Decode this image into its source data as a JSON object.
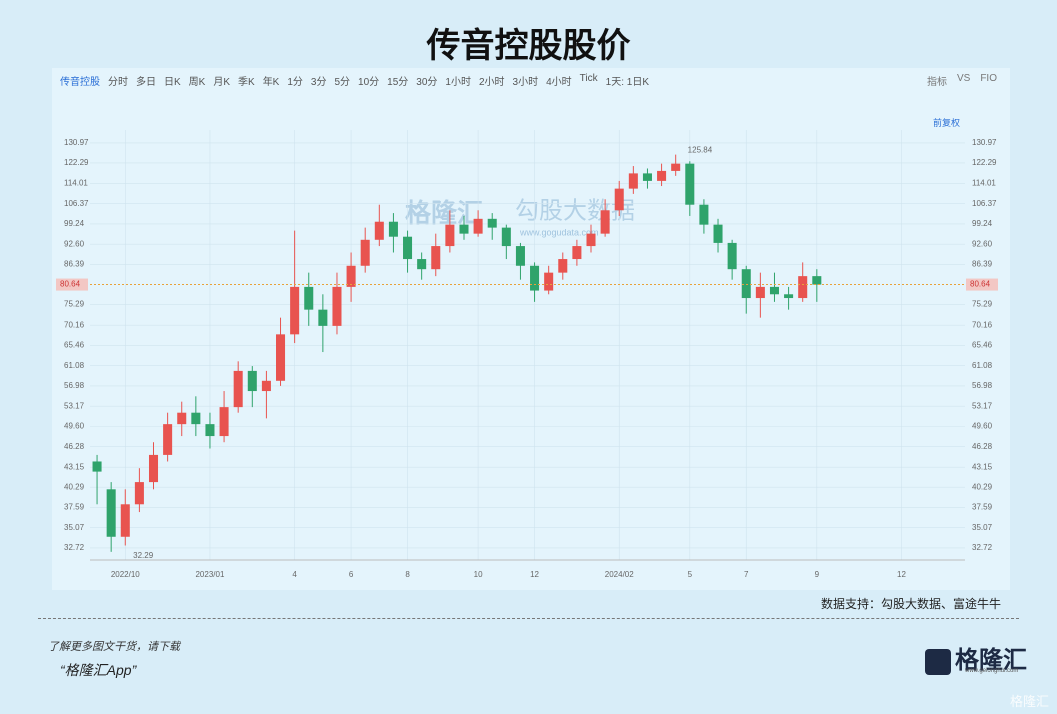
{
  "header": {
    "title": "传音控股股价"
  },
  "toolbar": {
    "stock": "传音控股",
    "periods": [
      "分时",
      "多日",
      "日K",
      "周K",
      "月K",
      "季K",
      "年K",
      "1分",
      "3分",
      "5分",
      "10分",
      "15分",
      "30分",
      "1小时",
      "2小时",
      "3小时",
      "4小时",
      "Tick",
      "1天: 1日K"
    ],
    "tools": [
      "指标",
      "VS",
      "FIO"
    ],
    "adjust": "前复权"
  },
  "chart_data": {
    "type": "candlestick",
    "categories": [
      null,
      null,
      "2022/10",
      null,
      null,
      null,
      null,
      null,
      "2023/01",
      null,
      null,
      null,
      null,
      null,
      "4",
      null,
      null,
      null,
      "6",
      null,
      null,
      null,
      "8",
      null,
      null,
      null,
      null,
      "10",
      null,
      null,
      null,
      "12",
      null,
      null,
      null,
      null,
      null,
      "2024/02",
      null,
      null,
      null,
      null,
      "5",
      null,
      null,
      null,
      "7",
      null,
      null,
      null,
      null,
      "9",
      null,
      null,
      null,
      null,
      null,
      "12",
      null,
      null,
      null,
      null
    ],
    "open": [
      44,
      40,
      34,
      38,
      41,
      45,
      50,
      52,
      50,
      48,
      53,
      60,
      56,
      58,
      68,
      80,
      74,
      70,
      80,
      86,
      94,
      100,
      95,
      88,
      85,
      92,
      99,
      96,
      101,
      98,
      92,
      86,
      79,
      84,
      88,
      92,
      96,
      104,
      112,
      118,
      115,
      119,
      122,
      106,
      99,
      93,
      85,
      77,
      80,
      78,
      77,
      83,
      null,
      null,
      null,
      null,
      null,
      null,
      null,
      null,
      null,
      null
    ],
    "high": [
      45,
      41,
      40,
      43,
      47,
      52,
      54,
      55,
      52,
      56,
      62,
      61,
      60,
      72,
      97,
      84,
      78,
      84,
      90,
      98,
      106,
      103,
      97,
      90,
      96,
      104,
      102,
      104,
      103,
      99,
      93,
      87,
      86,
      90,
      94,
      99,
      108,
      115,
      121,
      120,
      122,
      125.84,
      123,
      108,
      101,
      94,
      86,
      84,
      84,
      80,
      87,
      85,
      null,
      null,
      null,
      null,
      null,
      null,
      null,
      null,
      null,
      null
    ],
    "low": [
      38,
      32.29,
      33,
      37,
      40,
      44,
      48,
      48,
      46,
      47,
      52,
      53,
      51,
      57,
      66,
      70,
      64,
      68,
      76,
      84,
      92,
      90,
      84,
      82,
      83,
      90,
      94,
      95,
      94,
      88,
      82,
      76,
      78,
      82,
      86,
      90,
      95,
      102,
      110,
      112,
      113,
      117,
      102,
      96,
      90,
      82,
      73,
      72,
      76,
      74,
      76,
      76,
      null,
      null,
      null,
      null,
      null,
      null,
      null,
      null,
      null,
      null
    ],
    "close": [
      42.5,
      34,
      38,
      41,
      45,
      50,
      52,
      50,
      48,
      53,
      60,
      56,
      58,
      68,
      80,
      74,
      70,
      80,
      86,
      94,
      100,
      95,
      88,
      85,
      92,
      99,
      96,
      101,
      98,
      92,
      86,
      79,
      84,
      88,
      92,
      96,
      104,
      112,
      118,
      115,
      119,
      122,
      106,
      99,
      93,
      85,
      77,
      80,
      78,
      77,
      83,
      80.64,
      null,
      null,
      null,
      null,
      null,
      null,
      null,
      null,
      null,
      null
    ],
    "up_color": "#e8534f",
    "down_color": "#2fa36b",
    "ylim": [
      31.4,
      136.9
    ],
    "log_scale": true,
    "grid": true,
    "yticks": [
      130.97,
      122.29,
      114.01,
      106.37,
      99.24,
      {
        "value": 92.6,
        "label": "92.60"
      },
      86.39,
      75.29,
      70.16,
      65.46,
      61.08,
      56.98,
      53.17,
      {
        "value": 49.6,
        "label": "49.60"
      },
      46.28,
      43.15,
      40.29,
      37.59,
      35.07,
      32.72
    ],
    "last_price": 80.64,
    "max_index": 41,
    "min_index": 1
  },
  "watermark": {
    "brand": "格隆汇",
    "data": "勾股大数据",
    "url": "www.gogudata.com"
  },
  "footer": {
    "source": "数据支持：勾股大数据、富途牛牛",
    "promo": "了解更多图文干货，请下载",
    "app": "“格隆汇App”",
    "logo": "格隆汇",
    "logo_url": "www.gelonghui.com",
    "corner": "格隆汇"
  }
}
